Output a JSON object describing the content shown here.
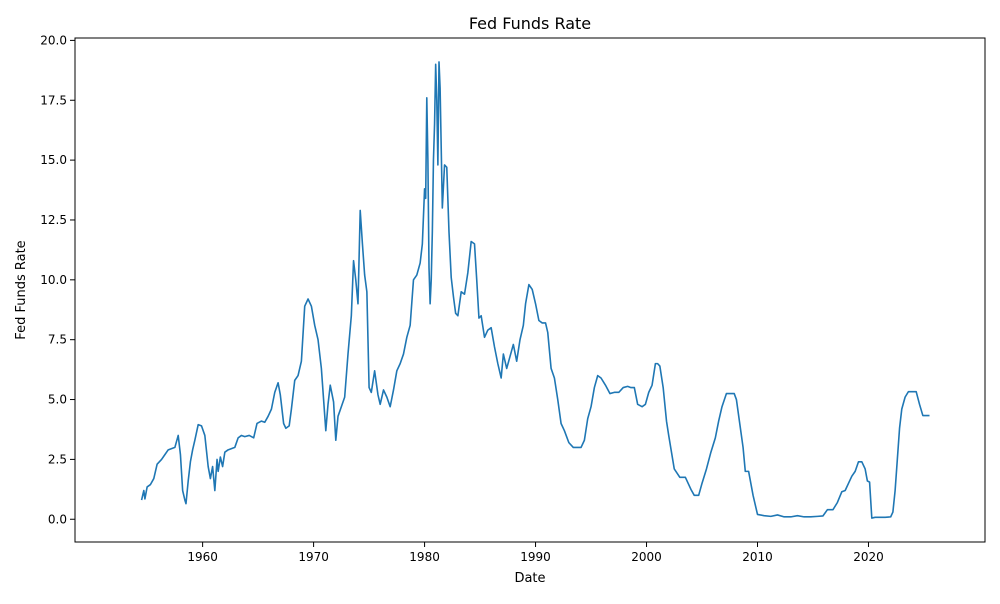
{
  "chart_data": {
    "type": "line",
    "title": "Fed Funds Rate",
    "xlabel": "Date",
    "ylabel": "Fed Funds Rate",
    "xlim": [
      1948.5,
      2030.5
    ],
    "ylim": [
      -0.95,
      20.1
    ],
    "x_ticks": [
      1960,
      1970,
      1980,
      1990,
      2000,
      2010,
      2020
    ],
    "x_tick_labels": [
      "1960",
      "1970",
      "1980",
      "1990",
      "2000",
      "2010",
      "2020"
    ],
    "y_ticks": [
      0.0,
      2.5,
      5.0,
      7.5,
      10.0,
      12.5,
      15.0,
      17.5,
      20.0
    ],
    "y_tick_labels": [
      "0.0",
      "2.5",
      "5.0",
      "7.5",
      "10.0",
      "12.5",
      "15.0",
      "17.5",
      "20.0"
    ],
    "grid": false,
    "line_color": "#1f77b4",
    "series": [
      {
        "x": [
          1954.5,
          1954.7,
          1954.8,
          1955.0,
          1955.3,
          1955.6,
          1955.9,
          1956.3,
          1956.6,
          1956.9,
          1957.2,
          1957.5,
          1957.8,
          1958.0,
          1958.2,
          1958.4,
          1958.5,
          1958.7,
          1958.9,
          1959.1,
          1959.3,
          1959.6,
          1959.9,
          1960.2,
          1960.5,
          1960.7,
          1960.9,
          1961.1,
          1961.3,
          1961.4,
          1961.6,
          1961.8,
          1962.0,
          1962.3,
          1962.6,
          1962.9,
          1963.2,
          1963.5,
          1963.8,
          1964.2,
          1964.6,
          1964.9,
          1965.3,
          1965.6,
          1965.9,
          1966.2,
          1966.5,
          1966.8,
          1967.0,
          1967.3,
          1967.5,
          1967.8,
          1968.0,
          1968.3,
          1968.6,
          1968.9,
          1969.2,
          1969.5,
          1969.8,
          1970.1,
          1970.4,
          1970.7,
          1970.9,
          1971.1,
          1971.3,
          1971.5,
          1971.8,
          1972.0,
          1972.2,
          1972.5,
          1972.8,
          1973.1,
          1973.4,
          1973.6,
          1973.8,
          1974.0,
          1974.2,
          1974.4,
          1974.6,
          1974.8,
          1975.0,
          1975.2,
          1975.5,
          1975.8,
          1976.0,
          1976.3,
          1976.6,
          1976.9,
          1977.2,
          1977.5,
          1977.8,
          1978.1,
          1978.4,
          1978.7,
          1979.0,
          1979.3,
          1979.6,
          1979.8,
          1980.0,
          1980.1,
          1980.2,
          1980.3,
          1980.4,
          1980.5,
          1980.6,
          1980.7,
          1980.8,
          1980.9,
          1981.0,
          1981.1,
          1981.2,
          1981.3,
          1981.4,
          1981.5,
          1981.6,
          1981.8,
          1982.0,
          1982.2,
          1982.4,
          1982.6,
          1982.8,
          1983.0,
          1983.3,
          1983.6,
          1983.9,
          1984.2,
          1984.5,
          1984.7,
          1984.9,
          1985.1,
          1985.4,
          1985.7,
          1986.0,
          1986.3,
          1986.6,
          1986.9,
          1987.1,
          1987.4,
          1987.7,
          1988.0,
          1988.3,
          1988.6,
          1988.9,
          1989.1,
          1989.4,
          1989.7,
          1990.0,
          1990.3,
          1990.6,
          1990.9,
          1991.1,
          1991.4,
          1991.7,
          1992.0,
          1992.3,
          1992.6,
          1993.0,
          1993.4,
          1993.8,
          1994.1,
          1994.4,
          1994.7,
          1995.0,
          1995.3,
          1995.6,
          1995.9,
          1996.3,
          1996.7,
          1997.1,
          1997.5,
          1997.9,
          1998.3,
          1998.6,
          1998.9,
          1999.2,
          1999.6,
          1999.9,
          2000.2,
          2000.5,
          2000.8,
          2001.0,
          2001.2,
          2001.5,
          2001.8,
          2002.0,
          2002.5,
          2003.0,
          2003.5,
          2004.0,
          2004.3,
          2004.7,
          2005.0,
          2005.4,
          2005.8,
          2006.2,
          2006.5,
          2006.8,
          2007.2,
          2007.6,
          2007.9,
          2008.1,
          2008.4,
          2008.7,
          2008.9,
          2009.2,
          2009.6,
          2010.0,
          2010.6,
          2011.2,
          2011.8,
          2012.4,
          2013.0,
          2013.6,
          2014.2,
          2014.8,
          2015.4,
          2015.9,
          2016.3,
          2016.8,
          2017.2,
          2017.6,
          2017.9,
          2018.2,
          2018.5,
          2018.8,
          2019.1,
          2019.4,
          2019.7,
          2019.9,
          2020.1,
          2020.3,
          2020.6,
          2021.0,
          2021.5,
          2022.0,
          2022.2,
          2022.4,
          2022.6,
          2022.8,
          2023.0,
          2023.3,
          2023.6,
          2024.0,
          2024.3,
          2024.6,
          2024.9,
          2025.2,
          2025.5
        ],
        "y": [
          0.8,
          1.2,
          0.85,
          1.35,
          1.45,
          1.7,
          2.3,
          2.5,
          2.7,
          2.9,
          2.95,
          3.0,
          3.5,
          2.7,
          1.2,
          0.8,
          0.65,
          1.6,
          2.4,
          2.9,
          3.3,
          3.95,
          3.9,
          3.5,
          2.2,
          1.7,
          2.2,
          1.2,
          2.5,
          2.0,
          2.6,
          2.2,
          2.8,
          2.9,
          2.95,
          3.0,
          3.4,
          3.5,
          3.45,
          3.5,
          3.4,
          4.0,
          4.1,
          4.05,
          4.3,
          4.6,
          5.3,
          5.7,
          5.2,
          4.0,
          3.8,
          3.9,
          4.6,
          5.8,
          6.0,
          6.6,
          8.9,
          9.2,
          8.9,
          8.1,
          7.5,
          6.3,
          5.0,
          3.7,
          4.8,
          5.6,
          4.9,
          3.3,
          4.3,
          4.7,
          5.1,
          6.9,
          8.5,
          10.8,
          10.0,
          9.0,
          12.9,
          11.5,
          10.2,
          9.5,
          5.5,
          5.3,
          6.2,
          5.2,
          4.8,
          5.4,
          5.1,
          4.7,
          5.4,
          6.2,
          6.5,
          6.9,
          7.6,
          8.1,
          10.0,
          10.2,
          10.7,
          11.5,
          13.8,
          13.4,
          17.6,
          15.0,
          10.5,
          9.0,
          10.0,
          12.0,
          15.0,
          16.5,
          19.0,
          17.5,
          14.8,
          19.1,
          18.0,
          15.5,
          13.0,
          14.8,
          14.7,
          12.0,
          10.1,
          9.3,
          8.6,
          8.5,
          9.5,
          9.4,
          10.3,
          11.6,
          11.5,
          10.0,
          8.4,
          8.5,
          7.6,
          7.9,
          8.0,
          7.2,
          6.5,
          5.9,
          6.9,
          6.3,
          6.8,
          7.3,
          6.6,
          7.5,
          8.1,
          9.0,
          9.8,
          9.6,
          9.0,
          8.3,
          8.2,
          8.2,
          7.8,
          6.3,
          5.9,
          5.0,
          4.0,
          3.7,
          3.2,
          3.0,
          3.0,
          3.0,
          3.3,
          4.2,
          4.7,
          5.5,
          6.0,
          5.9,
          5.6,
          5.25,
          5.3,
          5.3,
          5.5,
          5.55,
          5.5,
          5.5,
          4.8,
          4.7,
          4.8,
          5.3,
          5.6,
          6.5,
          6.5,
          6.4,
          5.5,
          4.1,
          3.5,
          2.1,
          1.75,
          1.75,
          1.25,
          1.0,
          1.0,
          1.5,
          2.1,
          2.8,
          3.4,
          4.1,
          4.7,
          5.25,
          5.25,
          5.25,
          5.0,
          4.0,
          3.0,
          2.0,
          2.0,
          1.0,
          0.2,
          0.15,
          0.12,
          0.18,
          0.1,
          0.1,
          0.15,
          0.1,
          0.1,
          0.12,
          0.14,
          0.4,
          0.4,
          0.7,
          1.15,
          1.2,
          1.5,
          1.8,
          2.0,
          2.4,
          2.4,
          2.1,
          1.6,
          1.55,
          0.05,
          0.08,
          0.08,
          0.08,
          0.1,
          0.3,
          1.2,
          2.5,
          3.8,
          4.6,
          5.1,
          5.33,
          5.33,
          5.33,
          4.8,
          4.33,
          4.33,
          4.33
        ]
      }
    ]
  }
}
